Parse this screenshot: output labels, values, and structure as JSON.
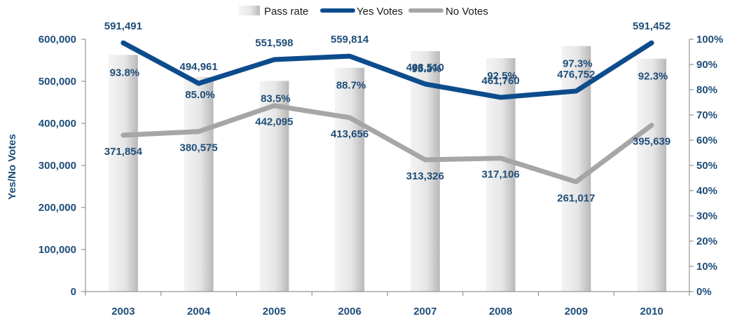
{
  "chart_data": {
    "type": "bar",
    "categories": [
      "2003",
      "2004",
      "2005",
      "2006",
      "2007",
      "2008",
      "2009",
      "2010"
    ],
    "series": [
      {
        "name": "Pass rate",
        "type": "bar",
        "axis": "right",
        "values": [
          93.8,
          85.0,
          83.5,
          88.7,
          95.3,
          92.5,
          97.3,
          92.3
        ],
        "labels": [
          "93.8%",
          "85.0%",
          "83.5%",
          "88.7%",
          "95.3%",
          "92.5%",
          "97.3%",
          "92.3%"
        ]
      },
      {
        "name": "Yes Votes",
        "type": "line",
        "axis": "left",
        "values": [
          591491,
          494961,
          551598,
          559814,
          493510,
          461760,
          476752,
          591452
        ],
        "labels": [
          "591,491",
          "494,961",
          "551,598",
          "559,814",
          "493,510",
          "461,760",
          "476,752",
          "591,452"
        ]
      },
      {
        "name": "No Votes",
        "type": "line",
        "axis": "left",
        "values": [
          371854,
          380575,
          442095,
          413656,
          313326,
          317106,
          261017,
          395639
        ],
        "labels": [
          "371,854",
          "380,575",
          "442,095",
          "413,656",
          "313,326",
          "317,106",
          "261,017",
          "395,639"
        ]
      }
    ],
    "ylabel": "Yes/No Votes",
    "ylim": [
      0,
      600000
    ],
    "y2lim": [
      0,
      100
    ],
    "y_ticks": [
      "0",
      "100,000",
      "200,000",
      "300,000",
      "400,000",
      "500,000",
      "600,000"
    ],
    "y2_ticks": [
      "0%",
      "10%",
      "20%",
      "30%",
      "40%",
      "50%",
      "60%",
      "70%",
      "80%",
      "90%",
      "100%"
    ],
    "legend_position": "top",
    "grid": false,
    "colors": {
      "yes": "#0d4c8c",
      "no": "#a6a6a6",
      "bar_light": "#f7f7f7",
      "bar_dark": "#bdbdbd",
      "axis": "#7f7f7f",
      "text": "#1f4e79"
    }
  }
}
